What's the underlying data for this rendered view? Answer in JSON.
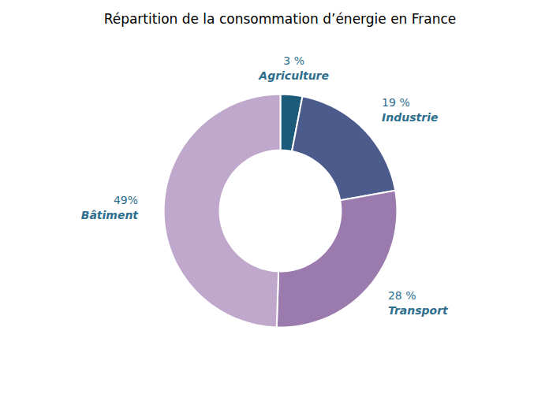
{
  "chart_data": {
    "type": "pie",
    "title": "Répartition de la consommation d’énergie en France",
    "categories": [
      "Agriculture",
      "Industrie",
      "Transport",
      "Bâtiment"
    ],
    "values": [
      3,
      19,
      28,
      49
    ],
    "value_labels": [
      "3 %",
      "19 %",
      "28 %",
      "49%"
    ],
    "colors": [
      "#1C5B7A",
      "#4B5B8C",
      "#9B7BAE",
      "#C0A8CC"
    ],
    "data_labels": true
  }
}
